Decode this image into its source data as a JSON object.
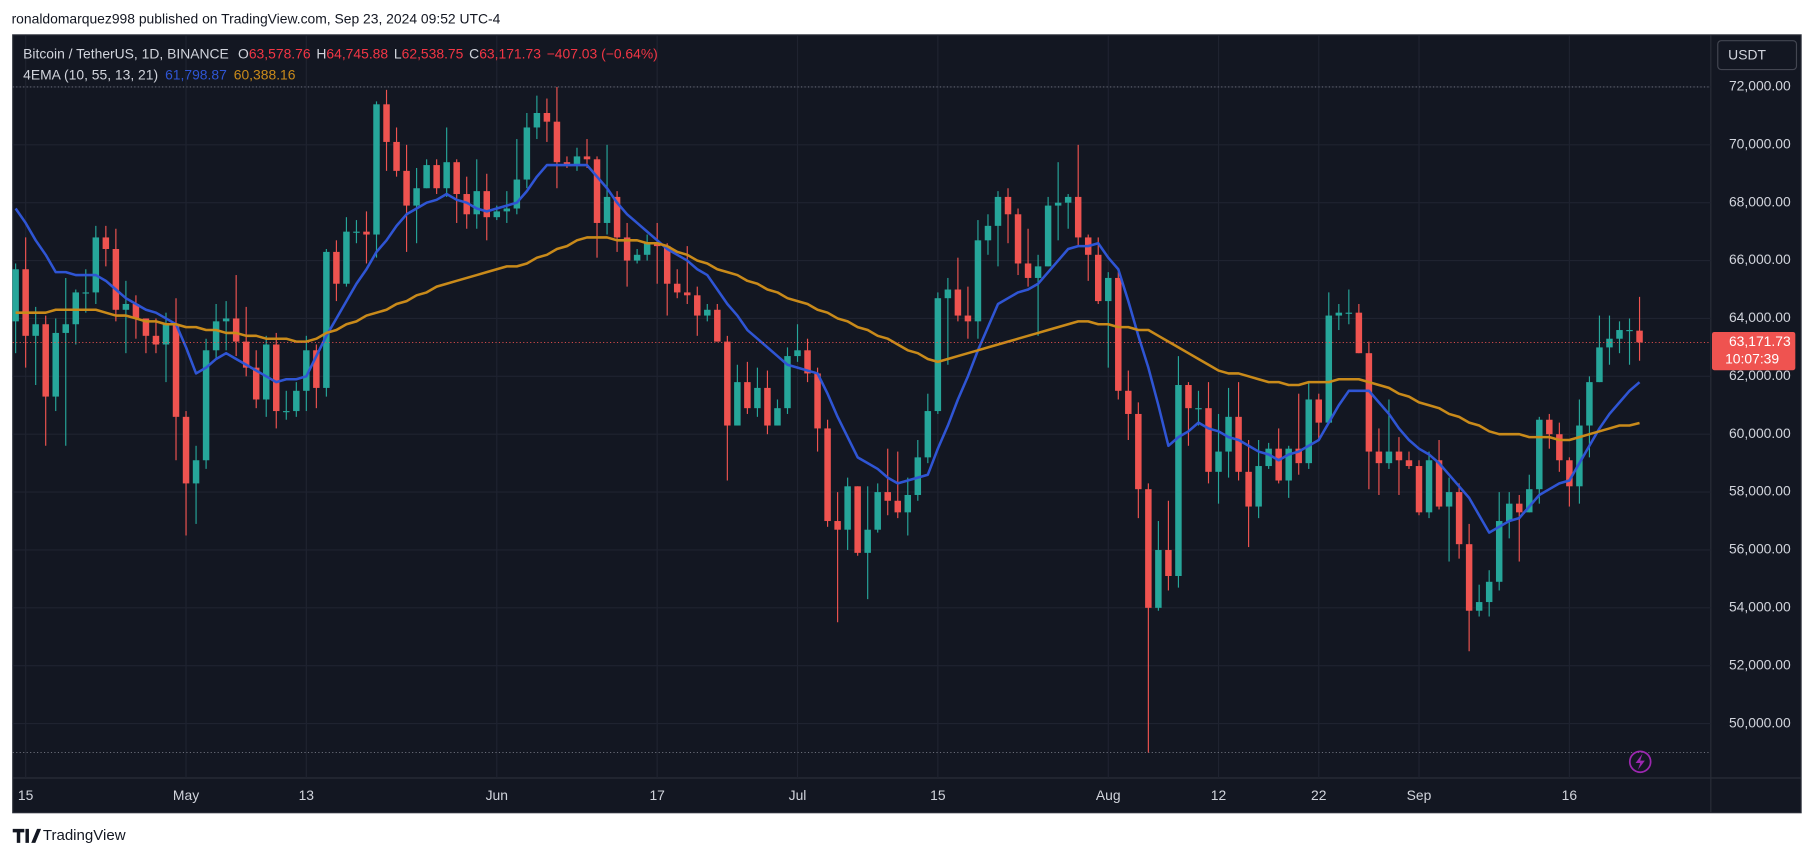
{
  "publisher_line": "ronaldomarquez998 published on TradingView.com, Sep 23, 2024 09:52 UTC-4",
  "brand": "TradingView",
  "chart_data": {
    "type": "candlestick",
    "symbol": "Bitcoin / TetherUS, 1D, BINANCE",
    "ohlc_legend": [
      {
        "key": "O",
        "value": "63,578.76"
      },
      {
        "key": "H",
        "value": "64,745.88"
      },
      {
        "key": "L",
        "value": "62,538.75"
      },
      {
        "key": "C",
        "value": "63,171.73"
      }
    ],
    "change": "−407.03 (−0.64%)",
    "currency": "USDT",
    "last_price_label": "63,171.73",
    "countdown": "10:07:39",
    "up_color": "#26a69a",
    "down_color": "#ef5350",
    "grid": true,
    "ylim": [
      48120,
      73800
    ],
    "yticks": [
      {
        "value": 50000,
        "label": "50,000.00"
      },
      {
        "value": 52000,
        "label": "52,000.00"
      },
      {
        "value": 54000,
        "label": "54,000.00"
      },
      {
        "value": 56000,
        "label": "56,000.00"
      },
      {
        "value": 58000,
        "label": "58,000.00"
      },
      {
        "value": 60000,
        "label": "60,000.00"
      },
      {
        "value": 62000,
        "label": "62,000.00"
      },
      {
        "value": 64000,
        "label": "64,000.00"
      },
      {
        "value": 66000,
        "label": "66,000.00"
      },
      {
        "value": 68000,
        "label": "68,000.00"
      },
      {
        "value": 70000,
        "label": "70,000.00"
      },
      {
        "value": 72000,
        "label": "72,000.00"
      }
    ],
    "categories": [
      null,
      "15",
      null,
      null,
      null,
      null,
      null,
      null,
      null,
      null,
      null,
      null,
      null,
      null,
      null,
      null,
      null,
      "May",
      null,
      null,
      null,
      null,
      null,
      null,
      null,
      null,
      null,
      null,
      null,
      "13",
      null,
      null,
      null,
      null,
      null,
      null,
      null,
      null,
      null,
      null,
      null,
      null,
      null,
      null,
      null,
      null,
      null,
      null,
      "Jun",
      null,
      null,
      null,
      null,
      null,
      null,
      null,
      null,
      null,
      null,
      null,
      null,
      null,
      null,
      null,
      "17",
      null,
      null,
      null,
      null,
      null,
      null,
      null,
      null,
      null,
      null,
      null,
      null,
      null,
      "Jul",
      null,
      null,
      null,
      null,
      null,
      null,
      null,
      null,
      null,
      null,
      null,
      null,
      null,
      "15",
      null,
      null,
      null,
      null,
      null,
      null,
      null,
      null,
      null,
      null,
      null,
      null,
      null,
      null,
      null,
      null,
      "Aug",
      null,
      null,
      null,
      null,
      null,
      null,
      null,
      null,
      null,
      null,
      "12",
      null,
      null,
      null,
      null,
      null,
      null,
      null,
      null,
      null,
      "22",
      null,
      null,
      null,
      null,
      null,
      null,
      null,
      null,
      null,
      "Sep",
      null,
      null,
      null,
      null,
      null,
      null,
      null,
      null,
      null,
      null,
      null,
      null,
      null,
      null,
      "16",
      null,
      null,
      null,
      null,
      null,
      null,
      null
    ],
    "open": [
      63900,
      65700,
      63400,
      63800,
      61300,
      63500,
      63800,
      64900,
      64900,
      66800,
      66400,
      64300,
      64500,
      64000,
      63400,
      63100,
      63800,
      60600,
      58300,
      59100,
      62900,
      63900,
      64000,
      63200,
      62300,
      61200,
      63100,
      60800,
      60800,
      61500,
      62900,
      61600,
      66300,
      65200,
      67000,
      67000,
      66900,
      71400,
      70100,
      69100,
      67900,
      68500,
      69300,
      68500,
      69400,
      68300,
      67600,
      68400,
      67500,
      67700,
      67800,
      68800,
      70600,
      71100,
      70800,
      69400,
      69300,
      69600,
      69500,
      67300,
      68200,
      66800,
      66000,
      66200,
      66600,
      66500,
      65200,
      64900,
      64800,
      64100,
      64300,
      63200,
      60300,
      61800,
      60900,
      61600,
      60300,
      60900,
      62700,
      62900,
      62100,
      60200,
      57000,
      56700,
      58200,
      55900,
      56700,
      58000,
      57700,
      57300,
      57900,
      59200,
      60800,
      64700,
      65000,
      64100,
      63900,
      66700,
      67200,
      68200,
      67600,
      65900,
      65400,
      65800,
      67900,
      68000,
      68200,
      66800,
      66200,
      64600,
      65400,
      61500,
      60700,
      58100,
      54000,
      56000,
      55100,
      61700,
      60900,
      60900,
      58700,
      59400,
      60600,
      58700,
      57500,
      58900,
      59500,
      58400,
      59500,
      59000,
      61200,
      60400,
      64100,
      64200,
      64200,
      62800,
      59400,
      59000,
      59400,
      59100,
      58900,
      57300,
      59100,
      57500,
      58000,
      56200,
      53900,
      54200,
      54900,
      57000,
      57600,
      57300,
      58100,
      60500,
      60000,
      59100,
      58200,
      60300,
      61800,
      63000,
      63300,
      63600,
      63578.76
    ],
    "high": [
      65900,
      66800,
      64400,
      64100,
      64000,
      65400,
      65000,
      65700,
      67200,
      67200,
      67100,
      65300,
      64800,
      64000,
      64000,
      64200,
      64700,
      60800,
      59600,
      63300,
      64500,
      64600,
      65500,
      64400,
      62900,
      63400,
      63500,
      61500,
      61800,
      63400,
      63100,
      66400,
      66700,
      67500,
      67400,
      67700,
      71500,
      71900,
      70600,
      70000,
      69200,
      69500,
      69500,
      70600,
      69500,
      68900,
      69500,
      69000,
      67900,
      68400,
      70200,
      71100,
      71700,
      71600,
      72000,
      69600,
      69900,
      70200,
      69600,
      70000,
      68400,
      67300,
      66400,
      66900,
      67300,
      66600,
      65700,
      66500,
      65100,
      64500,
      64500,
      63400,
      62400,
      62500,
      62300,
      62200,
      61200,
      63000,
      63800,
      63300,
      62300,
      60500,
      58000,
      58500,
      58200,
      58200,
      58300,
      59500,
      59400,
      58500,
      59800,
      61400,
      64900,
      65400,
      66100,
      65100,
      67400,
      67600,
      68400,
      68500,
      67800,
      67100,
      66200,
      68200,
      69400,
      68300,
      70000,
      66900,
      66800,
      65600,
      65600,
      62200,
      61100,
      58300,
      57000,
      57700,
      62700,
      61800,
      61500,
      61800,
      60700,
      61600,
      61800,
      59800,
      59800,
      59700,
      60200,
      59600,
      61400,
      61800,
      61400,
      64900,
      64500,
      65000,
      64500,
      63200,
      60200,
      61200,
      59900,
      59400,
      59100,
      59400,
      59800,
      58500,
      58300,
      56900,
      54800,
      55300,
      58000,
      58000,
      57900,
      58600,
      60600,
      60700,
      60400,
      59200,
      61200,
      62000,
      64100,
      64100,
      63900,
      64000,
      64745.88
    ],
    "low": [
      62800,
      62300,
      61700,
      59600,
      60800,
      59600,
      63100,
      64200,
      64500,
      65800,
      63900,
      62800,
      63300,
      62800,
      62800,
      61800,
      59100,
      56500,
      56900,
      58800,
      62600,
      62900,
      62700,
      62000,
      60900,
      60600,
      60200,
      60500,
      60600,
      60800,
      60900,
      61300,
      64600,
      65100,
      66600,
      65900,
      66100,
      69100,
      68900,
      66300,
      66600,
      68500,
      68300,
      68200,
      67300,
      67100,
      67100,
      66700,
      67400,
      67300,
      67600,
      68500,
      70200,
      70100,
      68500,
      69200,
      69100,
      69200,
      66100,
      66900,
      66300,
      65100,
      65900,
      66000,
      65200,
      64100,
      64700,
      64500,
      63400,
      63900,
      63200,
      58400,
      60300,
      60700,
      60600,
      60000,
      60300,
      60700,
      62500,
      61800,
      59400,
      56800,
      53500,
      56000,
      55800,
      54300,
      56600,
      57200,
      57100,
      56500,
      57700,
      59000,
      60700,
      62400,
      63900,
      63300,
      63300,
      66200,
      65800,
      66600,
      65500,
      65100,
      63400,
      65800,
      66700,
      67100,
      66500,
      65300,
      64500,
      62300,
      61200,
      59800,
      57100,
      49000,
      53900,
      54600,
      54700,
      59600,
      60300,
      58300,
      57600,
      58500,
      58400,
      56100,
      57100,
      58800,
      58300,
      57800,
      58600,
      58800,
      59800,
      60400,
      63600,
      63800,
      62800,
      58100,
      57900,
      58800,
      57900,
      58800,
      57200,
      57100,
      57400,
      55600,
      55700,
      52500,
      53700,
      53700,
      54600,
      56400,
      55600,
      57300,
      57600,
      59500,
      58700,
      57500,
      57600,
      59200,
      61800,
      62400,
      62800,
      62400,
      62538.75
    ],
    "close": [
      65700,
      63400,
      63800,
      61300,
      63500,
      63800,
      64900,
      64900,
      66800,
      66400,
      64300,
      64500,
      64000,
      63400,
      63100,
      63800,
      60600,
      58300,
      59100,
      62900,
      63900,
      64000,
      63200,
      62300,
      61200,
      63100,
      60800,
      60800,
      61500,
      62900,
      61600,
      66300,
      65200,
      67000,
      67000,
      66900,
      71400,
      70100,
      69100,
      67900,
      68500,
      69300,
      68500,
      69400,
      68300,
      67600,
      68400,
      67500,
      67700,
      67800,
      68800,
      70600,
      71100,
      70800,
      69400,
      69300,
      69600,
      69500,
      67300,
      68200,
      66800,
      66000,
      66200,
      66600,
      66500,
      65200,
      64900,
      64800,
      64100,
      64300,
      63200,
      60300,
      61800,
      60900,
      61600,
      60300,
      60900,
      62700,
      62900,
      62100,
      60200,
      57000,
      56700,
      58200,
      55900,
      56700,
      58000,
      57700,
      57300,
      57900,
      59200,
      60800,
      64700,
      65000,
      64100,
      63900,
      66700,
      67200,
      68200,
      67600,
      65900,
      65400,
      65800,
      67900,
      68000,
      68200,
      66800,
      66200,
      64600,
      65400,
      61500,
      60700,
      58100,
      54000,
      56000,
      55100,
      61700,
      60900,
      60900,
      58700,
      59400,
      60600,
      58700,
      57500,
      58900,
      59500,
      58400,
      59500,
      59000,
      61200,
      60400,
      64100,
      64200,
      64200,
      62800,
      59400,
      59000,
      59400,
      59100,
      58900,
      57300,
      59100,
      57500,
      58000,
      56200,
      53900,
      54200,
      54900,
      57000,
      57600,
      57300,
      58100,
      60500,
      60000,
      59100,
      58200,
      60300,
      61800,
      63000,
      63300,
      63600,
      63600,
      63171.73
    ],
    "indicator": {
      "name": "4EMA (10, 55, 13, 21)",
      "lines": [
        {
          "color": "#2f55d4",
          "value_label": "61,798.87",
          "values": [
            67800,
            67300,
            66700,
            66200,
            65600,
            65600,
            65500,
            65500,
            65500,
            65300,
            65000,
            64700,
            64500,
            64300,
            64200,
            64000,
            63800,
            63000,
            62100,
            62300,
            62600,
            62800,
            62600,
            62400,
            62200,
            62000,
            61800,
            61900,
            61900,
            62000,
            62700,
            63400,
            64000,
            64600,
            65200,
            65700,
            66300,
            66700,
            67200,
            67600,
            67800,
            68000,
            68100,
            68300,
            68100,
            68000,
            67800,
            67700,
            67800,
            67900,
            68000,
            68400,
            68900,
            69300,
            69300,
            69300,
            69300,
            69300,
            68900,
            68500,
            68000,
            67600,
            67300,
            67000,
            66700,
            66400,
            66200,
            66000,
            65700,
            65500,
            65000,
            64500,
            64100,
            63600,
            63300,
            63000,
            62700,
            62400,
            62300,
            62200,
            62100,
            61400,
            60600,
            59900,
            59200,
            59000,
            58800,
            58500,
            58300,
            58400,
            58500,
            58600,
            59500,
            60300,
            61200,
            62000,
            62900,
            63700,
            64500,
            64700,
            64900,
            65000,
            65200,
            65600,
            66000,
            66400,
            66500,
            66500,
            66600,
            66100,
            65700,
            64600,
            63400,
            62300,
            61000,
            59600,
            59900,
            60100,
            60400,
            60200,
            60100,
            59900,
            59800,
            59600,
            59400,
            59300,
            59100,
            59300,
            59400,
            59600,
            59800,
            60400,
            61000,
            61500,
            61500,
            61500,
            61100,
            60700,
            60200,
            59800,
            59500,
            59300,
            59000,
            58600,
            58200,
            57800,
            57200,
            56600,
            56800,
            57000,
            57100,
            57500,
            57900,
            58100,
            58300,
            58400,
            59000,
            59600,
            60200,
            60700,
            61100,
            61500,
            61798.87
          ]
        },
        {
          "color": "#c98a1a",
          "value_label": "60,388.16",
          "values": [
            64200,
            64200,
            64200,
            64200,
            64300,
            64300,
            64300,
            64300,
            64300,
            64200,
            64100,
            64100,
            64000,
            63900,
            63900,
            63800,
            63800,
            63700,
            63700,
            63600,
            63600,
            63500,
            63500,
            63400,
            63400,
            63300,
            63300,
            63300,
            63200,
            63200,
            63300,
            63500,
            63600,
            63800,
            63900,
            64100,
            64200,
            64300,
            64500,
            64600,
            64800,
            64900,
            65100,
            65200,
            65300,
            65400,
            65500,
            65600,
            65700,
            65800,
            65800,
            65900,
            66100,
            66200,
            66400,
            66500,
            66700,
            66800,
            66800,
            66800,
            66700,
            66700,
            66700,
            66600,
            66600,
            66500,
            66300,
            66200,
            66000,
            65900,
            65700,
            65600,
            65500,
            65300,
            65200,
            65000,
            64900,
            64700,
            64600,
            64500,
            64300,
            64200,
            64000,
            63900,
            63700,
            63600,
            63400,
            63300,
            63100,
            62900,
            62800,
            62600,
            62500,
            62600,
            62700,
            62800,
            62900,
            63000,
            63100,
            63200,
            63300,
            63400,
            63500,
            63600,
            63700,
            63800,
            63900,
            63900,
            63800,
            63800,
            63700,
            63700,
            63600,
            63600,
            63400,
            63200,
            63000,
            62800,
            62600,
            62400,
            62200,
            62100,
            62100,
            62000,
            61900,
            61800,
            61800,
            61700,
            61700,
            61800,
            61800,
            61800,
            61900,
            61900,
            61900,
            61800,
            61700,
            61600,
            61400,
            61300,
            61100,
            61000,
            60900,
            60700,
            60600,
            60400,
            60300,
            60100,
            60000,
            60000,
            60000,
            59900,
            59900,
            59900,
            59800,
            59800,
            59900,
            60000,
            60100,
            60200,
            60300,
            60300,
            60388.16
          ]
        }
      ]
    }
  }
}
